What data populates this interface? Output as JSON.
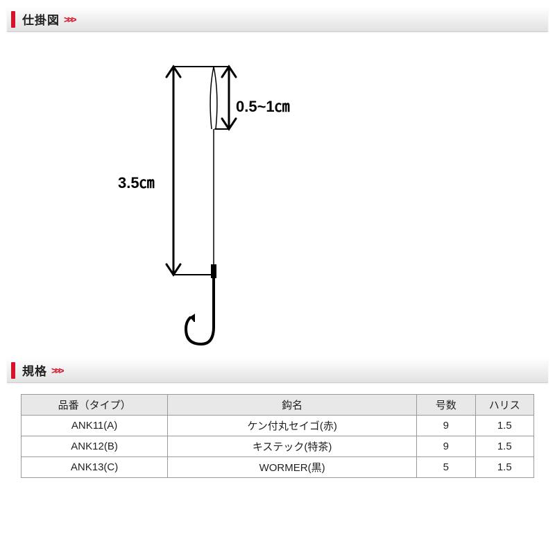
{
  "sections": {
    "diagram_title": "仕掛図",
    "spec_title": "規格",
    "chevron": ">>>"
  },
  "diagram": {
    "total_length": "3.5㎝",
    "loop_length": "0.5~1㎝",
    "stroke_color": "#000000",
    "stroke_width": 3,
    "line_thin": 1.5
  },
  "spec_table": {
    "headers": {
      "part": "品番（タイプ）",
      "hook": "鈎名",
      "size": "号数",
      "harris": "ハリス"
    },
    "rows": [
      {
        "part": "ANK11(A)",
        "hook": "ケン付丸セイゴ(赤)",
        "size": "9",
        "harris": "1.5"
      },
      {
        "part": "ANK12(B)",
        "hook": "キステック(特茶)",
        "size": "9",
        "harris": "1.5"
      },
      {
        "part": "ANK13(C)",
        "hook": "WORMER(黒)",
        "size": "5",
        "harris": "1.5"
      }
    ]
  },
  "colors": {
    "accent": "#d4142c",
    "header_bg": "#e8e8e8",
    "border": "#999999"
  }
}
